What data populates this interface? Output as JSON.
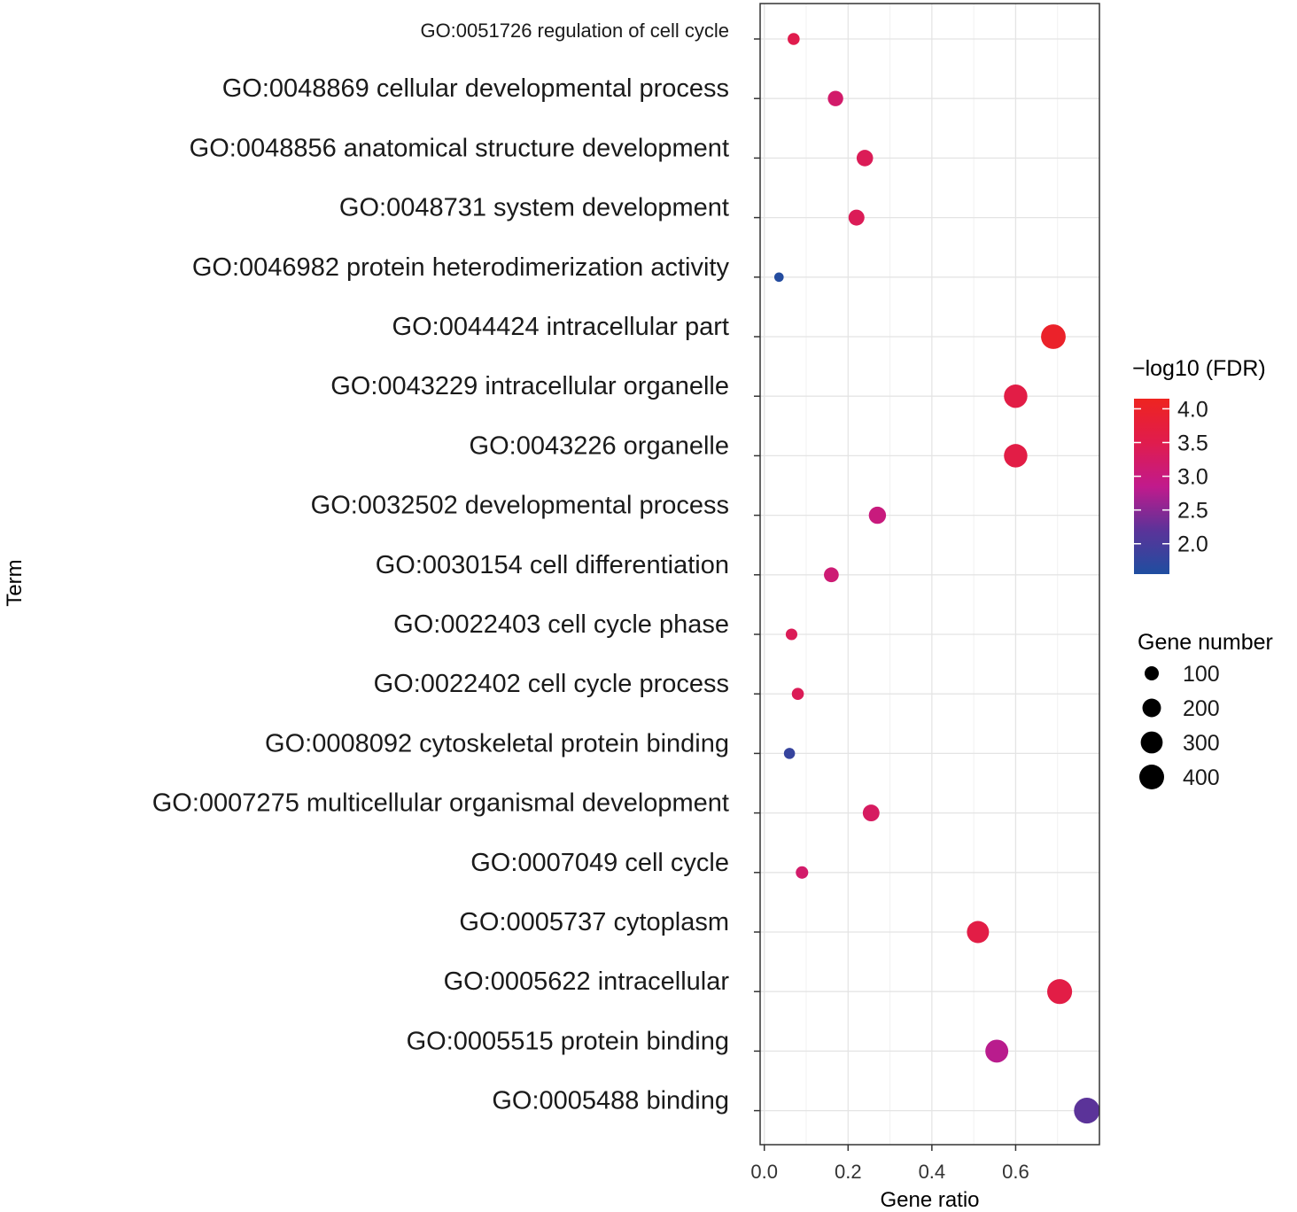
{
  "chart_data": {
    "type": "scatter",
    "title": "",
    "xlabel": "Gene ratio",
    "ylabel": "Term",
    "xlim": [
      -0.01,
      0.8
    ],
    "x_ticks": [
      "0.0",
      "0.2",
      "0.4",
      "0.6"
    ],
    "x_tick_values": [
      0.0,
      0.2,
      0.4,
      0.6
    ],
    "grid": true,
    "points": [
      {
        "term": "GO:0051726 regulation of cell cycle",
        "gene_ratio": 0.07,
        "neg_log10_fdr": 3.5,
        "gene_number": 40
      },
      {
        "term": "GO:0048869 cellular developmental process",
        "gene_ratio": 0.17,
        "neg_log10_fdr": 3.2,
        "gene_number": 90
      },
      {
        "term": "GO:0048856 anatomical structure development",
        "gene_ratio": 0.24,
        "neg_log10_fdr": 3.4,
        "gene_number": 110
      },
      {
        "term": "GO:0048731 system development",
        "gene_ratio": 0.22,
        "neg_log10_fdr": 3.4,
        "gene_number": 100
      },
      {
        "term": "GO:0046982 protein heterodimerization activity",
        "gene_ratio": 0.035,
        "neg_log10_fdr": 1.6,
        "gene_number": 15
      },
      {
        "term": "GO:0044424 intracellular part",
        "gene_ratio": 0.69,
        "neg_log10_fdr": 4.0,
        "gene_number": 330
      },
      {
        "term": "GO:0043229 intracellular organelle",
        "gene_ratio": 0.6,
        "neg_log10_fdr": 3.6,
        "gene_number": 290
      },
      {
        "term": "GO:0043226 organelle",
        "gene_ratio": 0.6,
        "neg_log10_fdr": 3.6,
        "gene_number": 290
      },
      {
        "term": "GO:0032502 developmental process",
        "gene_ratio": 0.27,
        "neg_log10_fdr": 3.0,
        "gene_number": 125
      },
      {
        "term": "GO:0030154 cell differentiation",
        "gene_ratio": 0.16,
        "neg_log10_fdr": 3.1,
        "gene_number": 80
      },
      {
        "term": "GO:0022403 cell cycle phase",
        "gene_ratio": 0.065,
        "neg_log10_fdr": 3.4,
        "gene_number": 35
      },
      {
        "term": "GO:0022402 cell cycle process",
        "gene_ratio": 0.08,
        "neg_log10_fdr": 3.4,
        "gene_number": 40
      },
      {
        "term": "GO:0008092 cytoskeletal protein binding",
        "gene_ratio": 0.06,
        "neg_log10_fdr": 1.8,
        "gene_number": 30
      },
      {
        "term": "GO:0007275 multicellular organismal development",
        "gene_ratio": 0.255,
        "neg_log10_fdr": 3.3,
        "gene_number": 115
      },
      {
        "term": "GO:0007049 cell cycle",
        "gene_ratio": 0.09,
        "neg_log10_fdr": 3.2,
        "gene_number": 45
      },
      {
        "term": "GO:0005737 cytoplasm",
        "gene_ratio": 0.51,
        "neg_log10_fdr": 3.6,
        "gene_number": 250
      },
      {
        "term": "GO:0005622 intracellular",
        "gene_ratio": 0.705,
        "neg_log10_fdr": 3.6,
        "gene_number": 340
      },
      {
        "term": "GO:0005515 protein binding",
        "gene_ratio": 0.555,
        "neg_log10_fdr": 2.8,
        "gene_number": 275
      },
      {
        "term": "GO:0005488 binding",
        "gene_ratio": 0.77,
        "neg_log10_fdr": 2.2,
        "gene_number": 370
      }
    ],
    "color_legend": {
      "title": "−log10 (FDR)",
      "ticks": [
        "4.0",
        "3.5",
        "3.0",
        "2.5",
        "2.0"
      ],
      "tick_values": [
        4.0,
        3.5,
        3.0,
        2.5,
        2.0
      ],
      "range": [
        1.55,
        4.15
      ],
      "colors": [
        "#1f4ea0",
        "#5b3399",
        "#c11a8c",
        "#e01c4d",
        "#ee2420"
      ]
    },
    "size_legend": {
      "title": "Gene number",
      "values": [
        100,
        200,
        300,
        400
      ],
      "labels": [
        "100",
        "200",
        "300",
        "400"
      ]
    },
    "legend_position": "right"
  }
}
